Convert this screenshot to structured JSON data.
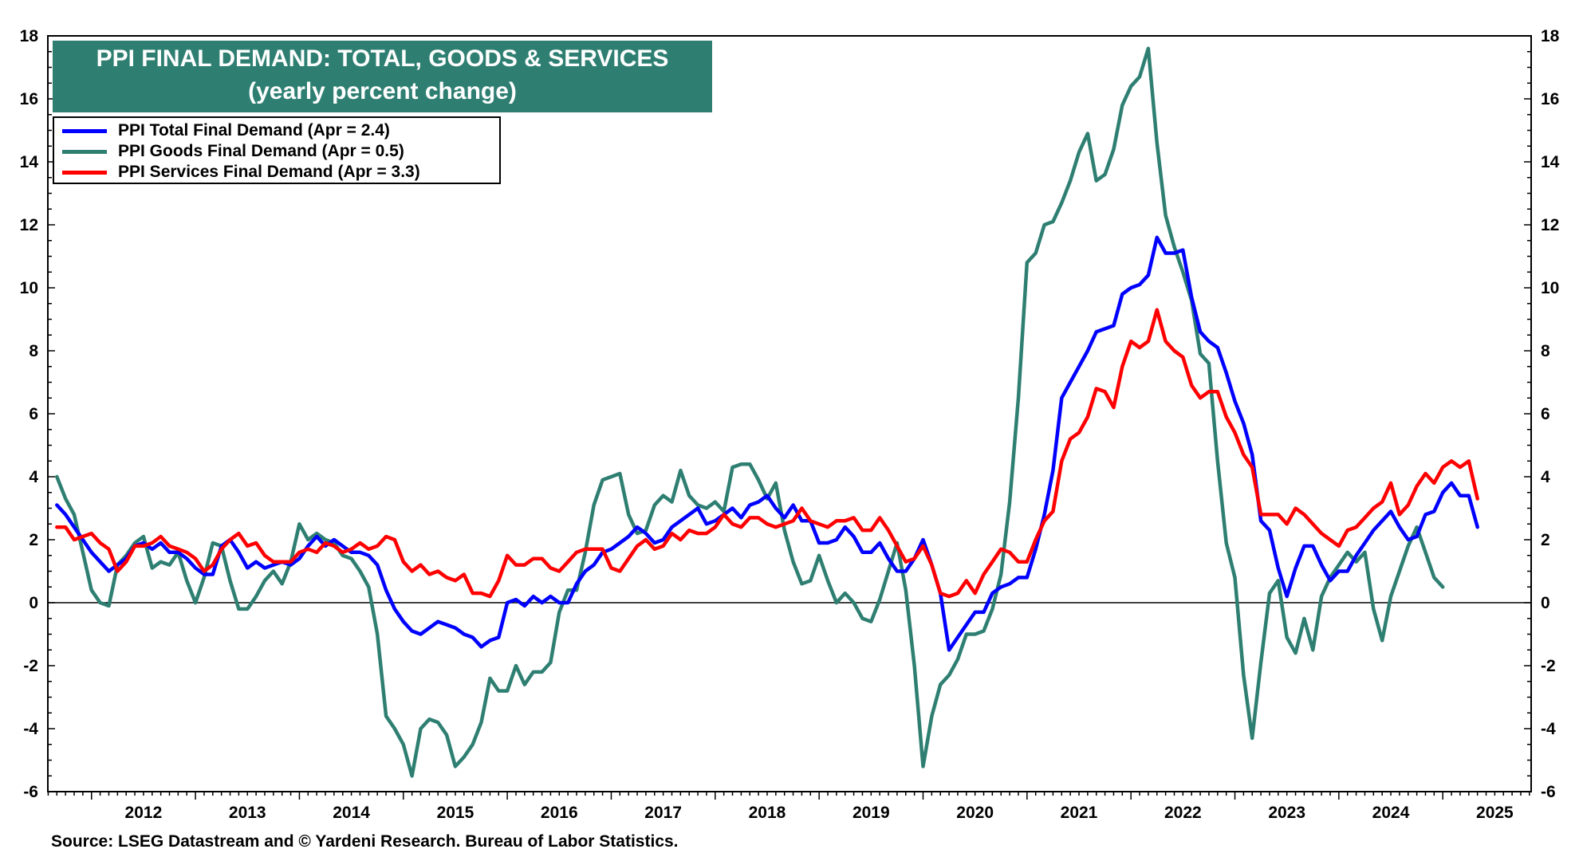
{
  "title": "PPI FINAL DEMAND: TOTAL, GOODS & SERVICES",
  "subtitle": "(yearly percent change)",
  "source": "Source: LSEG Datastream and © Yardeni Research. Bureau of Labor Statistics.",
  "colors": {
    "total": "#0000ff",
    "goods": "#2e7f72",
    "services": "#ff0000",
    "title_bg": "#2e7f72"
  },
  "chart_data": {
    "type": "line",
    "title": "PPI FINAL DEMAND: TOTAL, GOODS & SERVICES",
    "subtitle": "(yearly percent change)",
    "xlabel": "",
    "ylabel": "",
    "x_start": "2011-09",
    "x_step_months": 1,
    "xlim": [
      2011.58,
      2025.85
    ],
    "ylim": [
      -6,
      18
    ],
    "yticks": [
      -6,
      -4,
      -2,
      0,
      2,
      4,
      6,
      8,
      10,
      12,
      14,
      16,
      18
    ],
    "year_labels": [
      "2012",
      "2013",
      "2014",
      "2015",
      "2016",
      "2017",
      "2018",
      "2019",
      "2020",
      "2021",
      "2022",
      "2023",
      "2024",
      "2025"
    ],
    "legend_position": "top-left",
    "series": [
      {
        "name": "PPI Total Final Demand (Apr = 2.4)",
        "key": "total",
        "values": [
          3.1,
          2.8,
          2.4,
          2.0,
          1.6,
          1.3,
          1.0,
          1.2,
          1.4,
          1.8,
          1.9,
          1.7,
          1.9,
          1.6,
          1.6,
          1.4,
          1.1,
          0.9,
          0.9,
          1.8,
          2.0,
          1.6,
          1.1,
          1.3,
          1.1,
          1.2,
          1.3,
          1.2,
          1.4,
          1.8,
          2.1,
          1.8,
          2.0,
          1.8,
          1.6,
          1.6,
          1.5,
          1.2,
          0.4,
          -0.2,
          -0.6,
          -0.9,
          -1.0,
          -0.8,
          -0.6,
          -0.7,
          -0.8,
          -1.0,
          -1.1,
          -1.4,
          -1.2,
          -1.1,
          0.0,
          0.1,
          -0.1,
          0.2,
          0.0,
          0.2,
          0.0,
          0.0,
          0.6,
          1.0,
          1.2,
          1.6,
          1.7,
          1.9,
          2.1,
          2.4,
          2.2,
          1.9,
          2.0,
          2.4,
          2.6,
          2.8,
          3.0,
          2.5,
          2.6,
          2.8,
          3.0,
          2.7,
          3.1,
          3.2,
          3.4,
          3.0,
          2.7,
          3.1,
          2.6,
          2.6,
          1.9,
          1.9,
          2.0,
          2.4,
          2.1,
          1.6,
          1.6,
          1.9,
          1.4,
          1.0,
          1.0,
          1.4,
          2.0,
          1.2,
          0.3,
          -1.5,
          -1.1,
          -0.7,
          -0.3,
          -0.3,
          0.3,
          0.5,
          0.6,
          0.8,
          0.8,
          1.7,
          2.8,
          4.2,
          6.5,
          7.0,
          7.5,
          8.0,
          8.6,
          8.7,
          8.8,
          9.8,
          10.0,
          10.1,
          10.4,
          11.6,
          11.1,
          11.1,
          11.2,
          9.7,
          8.6,
          8.3,
          8.1,
          7.3,
          6.4,
          5.7,
          4.7,
          2.6,
          2.3,
          1.1,
          0.2,
          1.1,
          1.8,
          1.8,
          1.2,
          0.7,
          1.0,
          1.0,
          1.5,
          1.9,
          2.3,
          2.6,
          2.9,
          2.4,
          2.0,
          2.1,
          2.8,
          2.9,
          3.5,
          3.8,
          3.4,
          3.4,
          2.4
        ]
      },
      {
        "name": "PPI Goods Final Demand (Apr = 0.5)",
        "key": "goods",
        "values": [
          4.0,
          3.3,
          2.8,
          1.6,
          0.4,
          0.0,
          -0.1,
          1.2,
          1.5,
          1.9,
          2.1,
          1.1,
          1.3,
          1.2,
          1.6,
          0.7,
          0.0,
          0.8,
          1.9,
          1.8,
          0.7,
          -0.2,
          -0.2,
          0.2,
          0.7,
          1.0,
          0.6,
          1.3,
          2.5,
          2.0,
          2.2,
          2.0,
          1.9,
          1.5,
          1.4,
          1.0,
          0.5,
          -1.0,
          -3.6,
          -4.0,
          -4.5,
          -5.5,
          -4.0,
          -3.7,
          -3.8,
          -4.2,
          -5.2,
          -4.9,
          -4.5,
          -3.8,
          -2.4,
          -2.8,
          -2.8,
          -2.0,
          -2.6,
          -2.2,
          -2.2,
          -1.9,
          -0.3,
          0.4,
          0.4,
          1.6,
          3.1,
          3.9,
          4.0,
          4.1,
          2.8,
          2.2,
          2.3,
          3.1,
          3.4,
          3.2,
          4.2,
          3.4,
          3.1,
          3.0,
          3.2,
          2.9,
          4.3,
          4.4,
          4.4,
          3.9,
          3.3,
          3.8,
          2.3,
          1.3,
          0.6,
          0.7,
          1.5,
          0.7,
          0.0,
          0.3,
          0.0,
          -0.5,
          -0.6,
          0.1,
          1.0,
          1.9,
          0.4,
          -2.0,
          -5.2,
          -3.6,
          -2.6,
          -2.3,
          -1.8,
          -1.0,
          -1.0,
          -0.9,
          -0.2,
          0.9,
          3.2,
          6.5,
          10.8,
          11.1,
          12.0,
          12.1,
          12.7,
          13.4,
          14.3,
          14.9,
          13.4,
          13.6,
          14.4,
          15.8,
          16.4,
          16.7,
          17.6,
          14.6,
          12.3,
          11.3,
          10.5,
          9.6,
          7.9,
          7.6,
          4.5,
          1.9,
          0.8,
          -2.3,
          -4.3,
          -1.9,
          0.3,
          0.7,
          -1.1,
          -1.6,
          -0.5,
          -1.5,
          0.2,
          0.8,
          1.2,
          1.6,
          1.3,
          1.6,
          -0.2,
          -1.2,
          0.2,
          1.0,
          1.8,
          2.4,
          1.6,
          0.8,
          0.5
        ]
      },
      {
        "name": "PPI Services Final Demand (Apr = 3.3)",
        "key": "services",
        "values": [
          2.4,
          2.4,
          2.0,
          2.1,
          2.2,
          1.9,
          1.7,
          1.0,
          1.3,
          1.8,
          1.8,
          1.9,
          2.1,
          1.8,
          1.7,
          1.6,
          1.4,
          1.0,
          1.2,
          1.7,
          2.0,
          2.2,
          1.8,
          1.9,
          1.5,
          1.3,
          1.3,
          1.3,
          1.6,
          1.7,
          1.6,
          1.9,
          1.8,
          1.6,
          1.7,
          1.9,
          1.7,
          1.8,
          2.1,
          2.0,
          1.3,
          1.0,
          1.2,
          0.9,
          1.0,
          0.8,
          0.7,
          0.9,
          0.3,
          0.3,
          0.2,
          0.7,
          1.5,
          1.2,
          1.2,
          1.4,
          1.4,
          1.1,
          1.0,
          1.3,
          1.6,
          1.7,
          1.7,
          1.7,
          1.1,
          1.0,
          1.4,
          1.8,
          2.0,
          1.7,
          1.8,
          2.2,
          2.0,
          2.3,
          2.2,
          2.2,
          2.4,
          2.8,
          2.5,
          2.4,
          2.7,
          2.7,
          2.5,
          2.4,
          2.5,
          2.6,
          3.0,
          2.6,
          2.5,
          2.4,
          2.6,
          2.6,
          2.7,
          2.3,
          2.3,
          2.7,
          2.3,
          1.8,
          1.3,
          1.4,
          1.8,
          1.2,
          0.3,
          0.2,
          0.3,
          0.7,
          0.3,
          0.9,
          1.3,
          1.7,
          1.6,
          1.3,
          1.3,
          2.0,
          2.6,
          2.9,
          4.5,
          5.2,
          5.4,
          5.9,
          6.8,
          6.7,
          6.2,
          7.5,
          8.3,
          8.1,
          8.3,
          9.3,
          8.3,
          8.0,
          7.8,
          6.9,
          6.5,
          6.7,
          6.7,
          5.9,
          5.4,
          4.7,
          4.3,
          2.8,
          2.8,
          2.8,
          2.5,
          3.0,
          2.8,
          2.5,
          2.2,
          2.0,
          1.8,
          2.3,
          2.4,
          2.7,
          3.0,
          3.2,
          3.8,
          2.8,
          3.1,
          3.7,
          4.1,
          3.8,
          4.3,
          4.5,
          4.3,
          4.5,
          3.3
        ]
      }
    ]
  }
}
